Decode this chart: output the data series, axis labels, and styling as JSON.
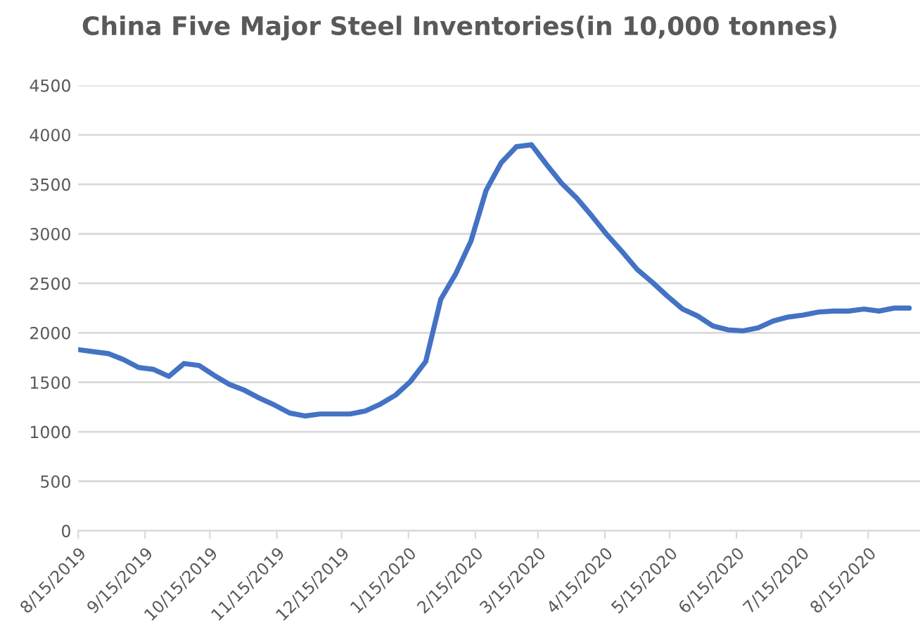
{
  "chart_data": {
    "type": "line",
    "title": "China Five Major Steel Inventories(in 10,000 tonnes)",
    "x": [
      "2019-08-15",
      "2019-08-22",
      "2019-08-29",
      "2019-09-05",
      "2019-09-12",
      "2019-09-19",
      "2019-09-26",
      "2019-10-03",
      "2019-10-10",
      "2019-10-17",
      "2019-10-24",
      "2019-10-31",
      "2019-11-07",
      "2019-11-14",
      "2019-11-21",
      "2019-11-28",
      "2019-12-05",
      "2019-12-12",
      "2019-12-19",
      "2019-12-26",
      "2020-01-02",
      "2020-01-09",
      "2020-01-16",
      "2020-01-23",
      "2020-01-30",
      "2020-02-06",
      "2020-02-13",
      "2020-02-20",
      "2020-02-27",
      "2020-03-05",
      "2020-03-12",
      "2020-03-19",
      "2020-03-26",
      "2020-04-02",
      "2020-04-09",
      "2020-04-16",
      "2020-04-23",
      "2020-04-30",
      "2020-05-07",
      "2020-05-14",
      "2020-05-21",
      "2020-05-28",
      "2020-06-04",
      "2020-06-11",
      "2020-06-18",
      "2020-06-25",
      "2020-07-02",
      "2020-07-09",
      "2020-07-16",
      "2020-07-23",
      "2020-07-30",
      "2020-08-06",
      "2020-08-13",
      "2020-08-20",
      "2020-08-27",
      "2020-09-03"
    ],
    "series": [
      {
        "color": "#4472c4",
        "values": [
          1830,
          1810,
          1790,
          1730,
          1650,
          1630,
          1560,
          1690,
          1670,
          1570,
          1480,
          1420,
          1340,
          1270,
          1190,
          1160,
          1180,
          1180,
          1180,
          1210,
          1280,
          1370,
          1510,
          1710,
          2340,
          2600,
          2930,
          3440,
          3720,
          3880,
          3900,
          3700,
          3510,
          3360,
          3180,
          2990,
          2820,
          2640,
          2510,
          2370,
          2240,
          2170,
          2070,
          2030,
          2020,
          2050,
          2120,
          2160,
          2180,
          2210,
          2220,
          2220,
          2240,
          2220,
          2250,
          2250
        ]
      }
    ],
    "xlim": [
      "2019-08-15",
      "2020-09-08"
    ],
    "xticks": [
      {
        "value": "2019-08-15",
        "label": "8/15/2019"
      },
      {
        "value": "2019-09-15",
        "label": "9/15/2019"
      },
      {
        "value": "2019-10-15",
        "label": "10/15/2019"
      },
      {
        "value": "2019-11-15",
        "label": "11/15/2019"
      },
      {
        "value": "2019-12-15",
        "label": "12/15/2019"
      },
      {
        "value": "2020-01-15",
        "label": "1/15/2020"
      },
      {
        "value": "2020-02-15",
        "label": "2/15/2020"
      },
      {
        "value": "2020-03-15",
        "label": "3/15/2020"
      },
      {
        "value": "2020-04-15",
        "label": "4/15/2020"
      },
      {
        "value": "2020-05-15",
        "label": "5/15/2020"
      },
      {
        "value": "2020-06-15",
        "label": "6/15/2020"
      },
      {
        "value": "2020-07-15",
        "label": "7/15/2020"
      },
      {
        "value": "2020-08-15",
        "label": "8/15/2020"
      }
    ],
    "ylim": [
      0,
      4500
    ],
    "yticks": [
      0,
      500,
      1000,
      1500,
      2000,
      2500,
      3000,
      3500,
      4000,
      4500
    ],
    "grid": "y",
    "marker": "none",
    "line_style": "solid"
  }
}
